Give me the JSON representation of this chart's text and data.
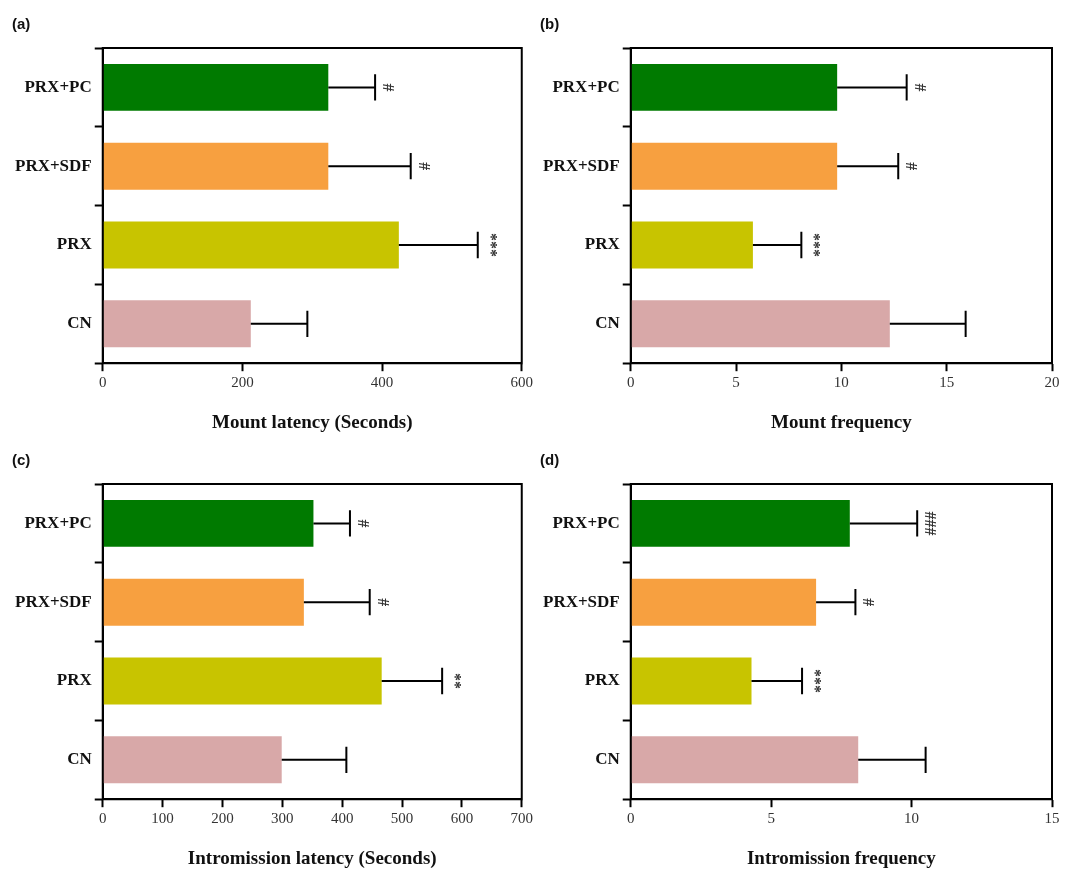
{
  "chart_data": [
    {
      "type": "bar",
      "orientation": "horizontal",
      "title": "(a)",
      "xlabel": "Mount latency (Seconds)",
      "categories": [
        "PRX+PC",
        "PRX+SDF",
        "PRX",
        "CN"
      ],
      "values": [
        323,
        323,
        424,
        212
      ],
      "colors": [
        "#007a00",
        "#f7a040",
        "#c8c400",
        "#d8a8a8"
      ],
      "errors": [
        [
          323,
          390
        ],
        [
          323,
          441
        ],
        [
          424,
          537
        ],
        [
          212,
          293
        ]
      ],
      "xlim": [
        0,
        600
      ],
      "xticks": [
        0,
        200,
        400,
        600
      ],
      "grid": false,
      "annotations": [
        {
          "text": "#",
          "x": 390,
          "y": "PRX+PC"
        },
        {
          "text": "#",
          "x": 441,
          "y": "PRX+SDF"
        },
        {
          "text": "***",
          "x": 537,
          "y": "PRX"
        }
      ]
    },
    {
      "type": "bar",
      "orientation": "horizontal",
      "title": "(b)",
      "xlabel": "Mount frequency",
      "categories": [
        "PRX+PC",
        "PRX+SDF",
        "PRX",
        "CN"
      ],
      "values": [
        9.8,
        9.8,
        5.8,
        12.3
      ],
      "colors": [
        "#007a00",
        "#f7a040",
        "#c8c400",
        "#d8a8a8"
      ],
      "errors": [
        [
          9.8,
          13.1
        ],
        [
          9.8,
          12.7
        ],
        [
          5.8,
          8.1
        ],
        [
          12.3,
          15.9
        ]
      ],
      "xlim": [
        0,
        20
      ],
      "xticks": [
        0,
        5,
        10,
        15,
        20
      ],
      "grid": false,
      "annotations": [
        {
          "text": "#",
          "x": 13.1,
          "y": "PRX+PC"
        },
        {
          "text": "#",
          "x": 12.7,
          "y": "PRX+SDF"
        },
        {
          "text": "***",
          "x": 8.1,
          "y": "PRX"
        }
      ]
    },
    {
      "type": "bar",
      "orientation": "horizontal",
      "title": "(c)",
      "xlabel": "Intromission latency (Seconds)",
      "categories": [
        "PRX+PC",
        "PRX+SDF",
        "PRX",
        "CN"
      ],
      "values": [
        352,
        336,
        466,
        299
      ],
      "colors": [
        "#007a00",
        "#f7a040",
        "#c8c400",
        "#d8a8a8"
      ],
      "errors": [
        [
          352,
          413
        ],
        [
          336,
          446
        ],
        [
          466,
          567
        ],
        [
          299,
          407
        ]
      ],
      "xlim": [
        0,
        700
      ],
      "xticks": [
        0,
        100,
        200,
        300,
        400,
        500,
        600,
        700
      ],
      "grid": false,
      "annotations": [
        {
          "text": "#",
          "x": 413,
          "y": "PRX+PC"
        },
        {
          "text": "#",
          "x": 446,
          "y": "PRX+SDF"
        },
        {
          "text": "**",
          "x": 567,
          "y": "PRX"
        }
      ]
    },
    {
      "type": "bar",
      "orientation": "horizontal",
      "title": "(d)",
      "xlabel": "Intromission frequency",
      "categories": [
        "PRX+PC",
        "PRX+SDF",
        "PRX",
        "CN"
      ],
      "values": [
        7.8,
        6.6,
        4.3,
        8.1
      ],
      "colors": [
        "#007a00",
        "#f7a040",
        "#c8c400",
        "#d8a8a8"
      ],
      "errors": [
        [
          7.8,
          10.2
        ],
        [
          6.6,
          8.0
        ],
        [
          4.3,
          6.1
        ],
        [
          8.1,
          10.5
        ]
      ],
      "xlim": [
        0,
        15
      ],
      "xticks": [
        0,
        5,
        10,
        15
      ],
      "grid": false,
      "annotations": [
        {
          "text": "###",
          "x": 10.2,
          "y": "PRX+PC"
        },
        {
          "text": "#",
          "x": 8.0,
          "y": "PRX+SDF"
        },
        {
          "text": "***",
          "x": 6.1,
          "y": "PRX"
        }
      ]
    }
  ]
}
